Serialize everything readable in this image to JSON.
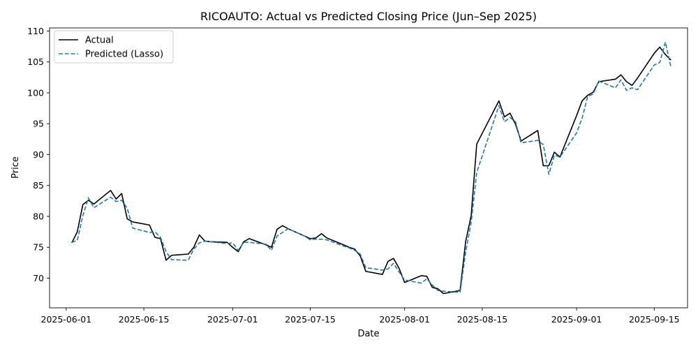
{
  "chart_data": {
    "type": "line",
    "title": "RICOAUTO: Actual vs Predicted Closing Price (Jun–Sep 2025)",
    "xlabel": "Date",
    "ylabel": "Price",
    "xlim": [
      "2025-05-29",
      "2025-09-21"
    ],
    "ylim": [
      65.2,
      110.5
    ],
    "x_ticks": [
      "2025-06-01",
      "2025-06-15",
      "2025-07-01",
      "2025-07-15",
      "2025-08-01",
      "2025-08-15",
      "2025-09-01",
      "2025-09-15"
    ],
    "y_ticks": [
      70,
      75,
      80,
      85,
      90,
      95,
      100,
      105,
      110
    ],
    "grid": false,
    "legend": "top-left",
    "x": [
      "2025-06-02",
      "2025-06-03",
      "2025-06-04",
      "2025-06-05",
      "2025-06-06",
      "2025-06-09",
      "2025-06-10",
      "2025-06-11",
      "2025-06-12",
      "2025-06-13",
      "2025-06-16",
      "2025-06-17",
      "2025-06-18",
      "2025-06-19",
      "2025-06-20",
      "2025-06-23",
      "2025-06-24",
      "2025-06-25",
      "2025-06-26",
      "2025-06-27",
      "2025-06-30",
      "2025-07-01",
      "2025-07-02",
      "2025-07-03",
      "2025-07-04",
      "2025-07-07",
      "2025-07-08",
      "2025-07-09",
      "2025-07-10",
      "2025-07-11",
      "2025-07-14",
      "2025-07-15",
      "2025-07-16",
      "2025-07-17",
      "2025-07-18",
      "2025-07-21",
      "2025-07-22",
      "2025-07-23",
      "2025-07-24",
      "2025-07-25",
      "2025-07-28",
      "2025-07-29",
      "2025-07-30",
      "2025-07-31",
      "2025-08-01",
      "2025-08-04",
      "2025-08-05",
      "2025-08-06",
      "2025-08-07",
      "2025-08-08",
      "2025-08-11",
      "2025-08-12",
      "2025-08-13",
      "2025-08-14",
      "2025-08-18",
      "2025-08-19",
      "2025-08-20",
      "2025-08-21",
      "2025-08-22",
      "2025-08-25",
      "2025-08-26",
      "2025-08-27",
      "2025-08-28",
      "2025-08-29",
      "2025-09-01",
      "2025-09-02",
      "2025-09-03",
      "2025-09-04",
      "2025-09-05",
      "2025-09-08",
      "2025-09-09",
      "2025-09-10",
      "2025-09-11",
      "2025-09-12",
      "2025-09-15",
      "2025-09-16",
      "2025-09-17",
      "2025-09-18"
    ],
    "series": [
      {
        "name": "Actual",
        "color": "#000000",
        "dash": "solid",
        "values": [
          75.7,
          77.5,
          81.9,
          82.6,
          82.0,
          84.2,
          82.8,
          83.7,
          79.6,
          79.1,
          78.6,
          76.6,
          76.4,
          72.9,
          73.7,
          73.9,
          75.0,
          77.0,
          76.0,
          75.9,
          75.8,
          75.0,
          74.3,
          75.9,
          76.4,
          75.4,
          75.0,
          77.9,
          78.5,
          78.0,
          76.8,
          76.4,
          76.5,
          77.2,
          76.5,
          75.4,
          75.0,
          74.7,
          73.6,
          71.1,
          70.6,
          72.7,
          73.2,
          71.6,
          69.3,
          70.4,
          70.3,
          68.5,
          68.3,
          67.5,
          68.0,
          75.9,
          80.1,
          91.7,
          98.7,
          96.1,
          96.7,
          94.9,
          92.2,
          93.9,
          88.2,
          88.2,
          90.4,
          89.6,
          96.3,
          98.7,
          99.6,
          100.1,
          101.8,
          102.2,
          102.9,
          101.8,
          101.2,
          102.4,
          106.4,
          107.4,
          106.2,
          105.3
        ]
      },
      {
        "name": "Predicted (Lasso)",
        "color": "#1f77b4",
        "dash": "dashed",
        "values": [
          75.8,
          76.1,
          80.1,
          83.0,
          81.4,
          83.1,
          82.4,
          82.6,
          81.3,
          78.1,
          77.4,
          77.5,
          76.6,
          74.3,
          73.0,
          72.9,
          74.7,
          75.7,
          76.0,
          75.9,
          75.6,
          75.7,
          74.5,
          75.8,
          75.8,
          75.5,
          74.5,
          76.8,
          77.4,
          78.0,
          76.8,
          76.2,
          76.3,
          76.3,
          76.2,
          75.2,
          74.9,
          74.5,
          73.9,
          71.7,
          71.3,
          71.5,
          72.4,
          71.0,
          69.7,
          69.2,
          69.9,
          68.9,
          68.0,
          67.9,
          67.7,
          74.2,
          79.0,
          87.1,
          97.9,
          95.3,
          96.0,
          95.3,
          91.9,
          92.3,
          91.6,
          86.8,
          89.9,
          89.6,
          93.5,
          95.9,
          99.4,
          99.8,
          101.9,
          100.8,
          102.1,
          100.4,
          100.8,
          100.5,
          104.5,
          104.9,
          108.2,
          104.2
        ]
      }
    ]
  }
}
